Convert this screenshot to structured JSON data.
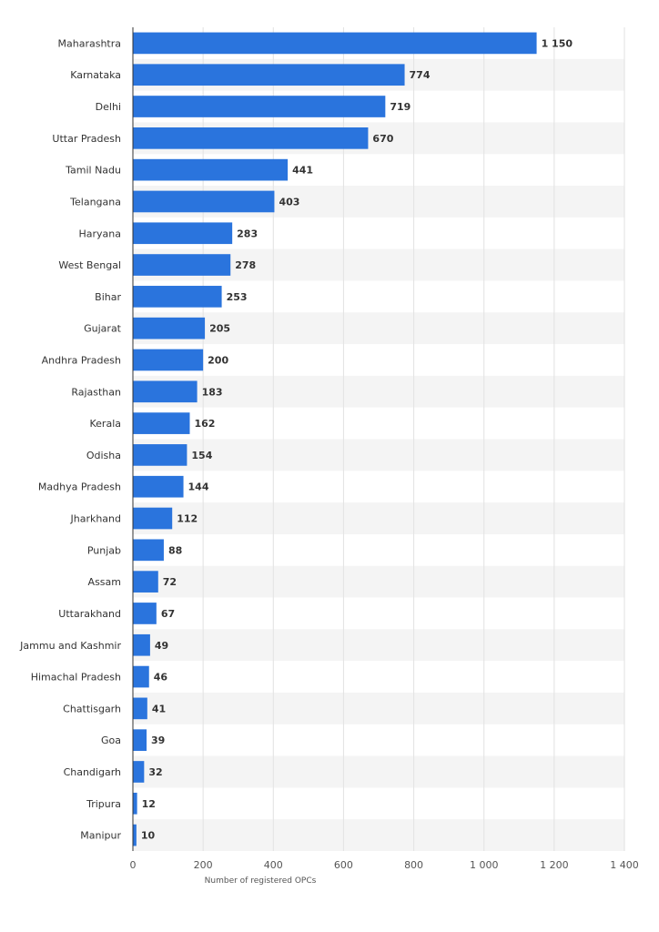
{
  "chart_data": {
    "type": "bar",
    "orientation": "horizontal",
    "title": "",
    "xlabel": "Number of registered OPCs",
    "ylabel": "",
    "xlim": [
      0,
      1400
    ],
    "x_ticks": [
      0,
      200,
      400,
      600,
      800,
      1000,
      1200,
      1400
    ],
    "x_tick_labels": [
      "0",
      "200",
      "400",
      "600",
      "800",
      "1 000",
      "1 200",
      "1 400"
    ],
    "grid": true,
    "legend": "none",
    "bar_color": "#2a74dd",
    "categories": [
      "Maharashtra",
      "Karnataka",
      "Delhi",
      "Uttar Pradesh",
      "Tamil Nadu",
      "Telangana",
      "Haryana",
      "West Bengal",
      "Bihar",
      "Gujarat",
      "Andhra Pradesh",
      "Rajasthan",
      "Kerala",
      "Odisha",
      "Madhya Pradesh",
      "Jharkhand",
      "Punjab",
      "Assam",
      "Uttarakhand",
      "Jammu and Kashmir",
      "Himachal Pradesh",
      "Chattisgarh",
      "Goa",
      "Chandigarh",
      "Tripura",
      "Manipur"
    ],
    "values": [
      1150,
      774,
      719,
      670,
      441,
      403,
      283,
      278,
      253,
      205,
      200,
      183,
      162,
      154,
      144,
      112,
      88,
      72,
      67,
      49,
      46,
      41,
      39,
      32,
      12,
      10
    ],
    "value_labels": [
      "1 150",
      "774",
      "719",
      "670",
      "441",
      "403",
      "283",
      "278",
      "253",
      "205",
      "200",
      "183",
      "162",
      "154",
      "144",
      "112",
      "88",
      "72",
      "67",
      "49",
      "46",
      "41",
      "39",
      "32",
      "12",
      "10"
    ]
  }
}
